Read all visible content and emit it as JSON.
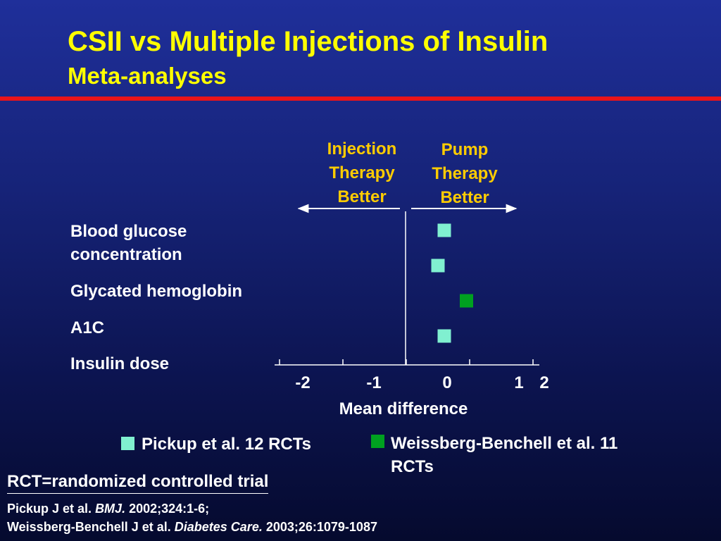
{
  "slide": {
    "title": "CSII vs Multiple Injections of Insulin",
    "subtitle": "Meta-analyses"
  },
  "headers": {
    "left": [
      "Injection",
      "Therapy",
      "Better"
    ],
    "right": [
      "Pump",
      "Therapy",
      "Better"
    ]
  },
  "row_labels": [
    "Blood glucose",
    "concentration",
    "Glycated hemoglobin",
    "A1C",
    "Insulin dose"
  ],
  "legend": {
    "pickup": "Pickup et al. 12 RCTs",
    "weissberg": [
      "Weissberg-Benchell et al. 11",
      "RCTs"
    ]
  },
  "footnote": "RCT=randomized controlled trial",
  "references": [
    {
      "pre": "Pickup J et al. ",
      "journal": "BMJ.",
      "post": " 2002;324:1-6;"
    },
    {
      "pre": "Weissberg-Benchell J et al. ",
      "journal": "Diabetes Care.",
      "post": " 2003;26:1079-1087"
    }
  ],
  "colors": {
    "background_top": "#1f2f9a",
    "background_bottom": "#050a2e",
    "title": "#ffff00",
    "header": "#ffcc00",
    "rule": "#e8141b",
    "pickup": "#80f0d0",
    "weissberg": "#00a020"
  },
  "chart_data": {
    "type": "scatter",
    "xlabel": "Mean difference",
    "xlim": [
      -2,
      2
    ],
    "x_ticks": [
      -2,
      -1,
      0,
      1,
      2
    ],
    "x_tick_labels": [
      "-2",
      "-1",
      "0",
      "1",
      "2"
    ],
    "series": [
      {
        "name": "Pickup et al. 12 RCTs",
        "color": "#80f0d0",
        "points": [
          {
            "row": 0,
            "x": 0.6
          },
          {
            "row": 1,
            "x": 0.5
          },
          {
            "row": 3,
            "x": 0.6
          }
        ]
      },
      {
        "name": "Weissberg-Benchell et al. 11 RCTs",
        "color": "#00a020",
        "points": [
          {
            "row": 2,
            "x": 0.95
          }
        ]
      }
    ]
  }
}
